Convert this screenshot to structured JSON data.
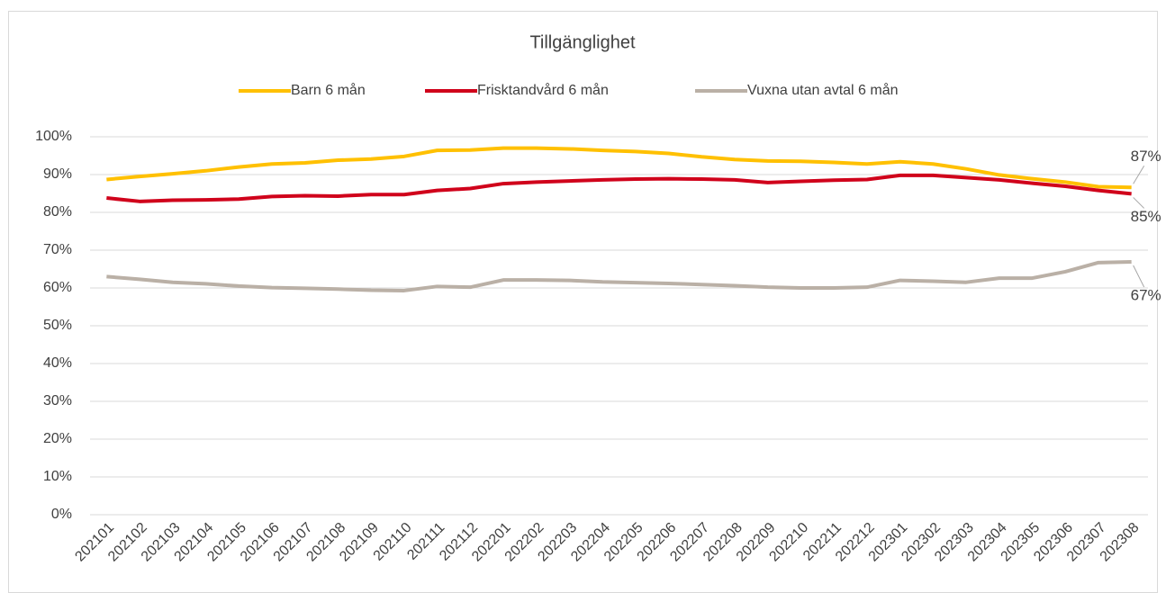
{
  "chart_data": {
    "type": "line",
    "title": "Tillgänglighet",
    "categories": [
      "202101",
      "202102",
      "202103",
      "202104",
      "202105",
      "202106",
      "202107",
      "202108",
      "202109",
      "202110",
      "202111",
      "202112",
      "202201",
      "202202",
      "202203",
      "202204",
      "202205",
      "202206",
      "202207",
      "202208",
      "202209",
      "202210",
      "202211",
      "202212",
      "202301",
      "202302",
      "202303",
      "202304",
      "202305",
      "202306",
      "202307",
      "202308"
    ],
    "series": [
      {
        "name": "Barn 6 mån",
        "color": "#ffc000",
        "values": [
          88.7,
          89.5,
          90.2,
          91,
          92,
          92.8,
          93.1,
          93.8,
          94.1,
          94.8,
          96.4,
          96.5,
          97,
          97,
          96.8,
          96.4,
          96.1,
          95.6,
          94.7,
          94,
          93.6,
          93.5,
          93.2,
          92.8,
          93.4,
          92.8,
          91.5,
          89.9,
          88.9,
          88,
          86.8,
          86.6
        ],
        "value_labels": [
          null,
          null,
          null,
          null,
          null,
          null,
          null,
          null,
          null,
          null,
          null,
          null,
          null,
          null,
          null,
          null,
          null,
          null,
          null,
          null,
          null,
          null,
          null,
          null,
          null,
          null,
          null,
          null,
          null,
          null,
          null,
          "87%"
        ]
      },
      {
        "name": "Frisktandvård 6 mån",
        "color": "#d0021b",
        "values": [
          83.8,
          82.9,
          83.2,
          83.3,
          83.5,
          84.2,
          84.4,
          84.3,
          84.7,
          84.7,
          85.8,
          86.3,
          87.6,
          88,
          88.3,
          88.6,
          88.8,
          88.9,
          88.8,
          88.6,
          87.9,
          88.2,
          88.5,
          88.7,
          89.8,
          89.8,
          89.2,
          88.6,
          87.7,
          86.9,
          85.8,
          84.9
        ],
        "value_labels": [
          null,
          null,
          null,
          null,
          null,
          null,
          null,
          null,
          null,
          null,
          null,
          null,
          null,
          null,
          null,
          null,
          null,
          null,
          null,
          null,
          null,
          null,
          null,
          null,
          null,
          null,
          null,
          null,
          null,
          null,
          null,
          "85%"
        ]
      },
      {
        "name": "Vuxna utan avtal 6 mån",
        "color": "#bab0a6",
        "values": [
          63,
          62.3,
          61.5,
          61.1,
          60.5,
          60.1,
          59.9,
          59.7,
          59.4,
          59.3,
          60.4,
          60.2,
          62.1,
          62.1,
          62,
          61.6,
          61.4,
          61.2,
          60.9,
          60.6,
          60.2,
          60,
          60,
          60.2,
          62,
          61.8,
          61.5,
          62.6,
          62.6,
          64.3,
          66.7,
          66.9
        ],
        "value_labels": [
          null,
          null,
          null,
          null,
          null,
          null,
          null,
          null,
          null,
          null,
          null,
          null,
          null,
          null,
          null,
          null,
          null,
          null,
          null,
          null,
          null,
          null,
          null,
          null,
          null,
          null,
          null,
          null,
          null,
          null,
          null,
          "67%"
        ]
      }
    ],
    "ylim": [
      0,
      100
    ],
    "yticks": [
      {
        "value": 0,
        "label": "0%"
      },
      {
        "value": 10,
        "label": "10%"
      },
      {
        "value": 20,
        "label": "20%"
      },
      {
        "value": 30,
        "label": "30%"
      },
      {
        "value": 40,
        "label": "40%"
      },
      {
        "value": 50,
        "label": "50%"
      },
      {
        "value": 60,
        "label": "60%"
      },
      {
        "value": 70,
        "label": "70%"
      },
      {
        "value": 80,
        "label": "80%"
      },
      {
        "value": 90,
        "label": "90%"
      },
      {
        "value": 100,
        "label": "100%"
      }
    ],
    "grid": true,
    "legend": "top"
  }
}
